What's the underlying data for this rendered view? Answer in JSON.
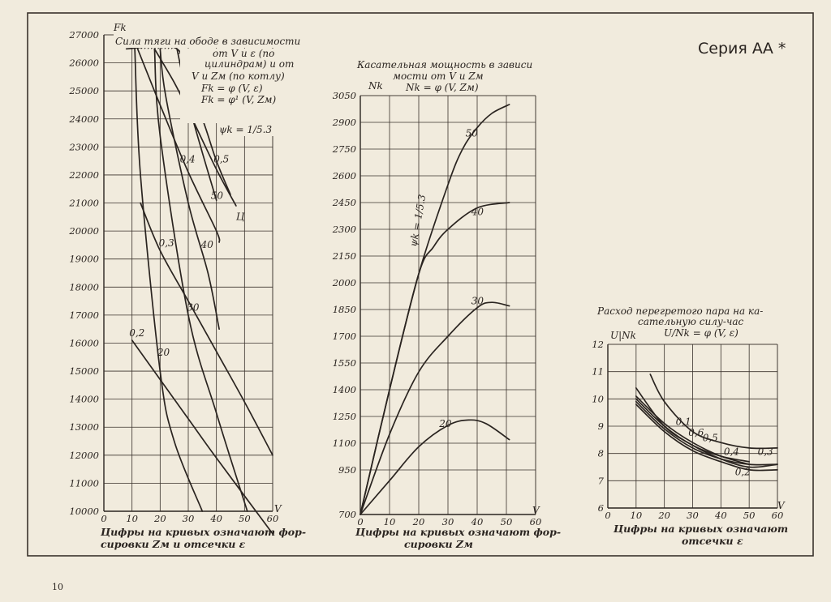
{
  "page": {
    "series_title": "Серия АА *",
    "page_number": "10"
  },
  "chart_data": [
    {
      "type": "line",
      "title": "Сила тяги на ободе в зависимости от V и ε (по цилиндрам) и от V и Zм (по котлу)",
      "title_lines": [
        "Сила тяги на ободе в зависимости",
        "от V и ε (по",
        "цилиндрам) и от",
        "V и Zм (по котлу)"
      ],
      "formulas": [
        "Fk = φ (V, ε)",
        "Fk = φ¹ (V, Zм)"
      ],
      "psi_label": "ψk = 1/5.3",
      "ylabel": "Fk",
      "xlabel": "V",
      "caption_lines": [
        "Цифры на кривых означают фор-",
        "сировки Zм и отсечки ε"
      ],
      "xlim": [
        0,
        60
      ],
      "ylim": [
        10000,
        27000
      ],
      "x_ticks": [
        0,
        10,
        20,
        30,
        40,
        50,
        60
      ],
      "y_ticks": [
        10000,
        11000,
        12000,
        13000,
        14000,
        15000,
        16000,
        17000,
        18000,
        19000,
        20000,
        21000,
        22000,
        23000,
        24000,
        25000,
        26000,
        27000
      ],
      "grid": true,
      "series": [
        {
          "name": "0,2",
          "group": "ε",
          "x": [
            10,
            20,
            30,
            40,
            60
          ],
          "y": [
            16100,
            14700,
            13300,
            11900,
            9200
          ]
        },
        {
          "name": "0,3",
          "group": "ε",
          "x": [
            13,
            20,
            30,
            40,
            50,
            60
          ],
          "y": [
            21000,
            19300,
            17500,
            15700,
            13900,
            12000
          ]
        },
        {
          "name": "0,4",
          "group": "ε",
          "x": [
            12,
            20,
            30,
            40,
            41
          ],
          "y": [
            26500,
            24500,
            22100,
            20000,
            19600
          ]
        },
        {
          "name": "0,5",
          "group": "ε",
          "x": [
            18,
            25,
            30,
            40,
            47
          ],
          "y": [
            26500,
            25300,
            24300,
            22200,
            20900
          ]
        },
        {
          "name": "20",
          "group": "Zм",
          "x": [
            11,
            13,
            20,
            25,
            35
          ],
          "y": [
            26500,
            22000,
            15000,
            12500,
            10000
          ]
        },
        {
          "name": "30",
          "group": "Zм",
          "x": [
            18,
            20,
            30,
            40,
            51
          ],
          "y": [
            26500,
            23400,
            17000,
            13500,
            10000
          ]
        },
        {
          "name": "40",
          "group": "Zм",
          "x": [
            20,
            22,
            30,
            37,
            41
          ],
          "y": [
            26500,
            24800,
            21000,
            18500,
            16500
          ]
        },
        {
          "name": "50",
          "group": "Zм",
          "x": [
            26,
            30,
            35,
            40
          ],
          "y": [
            26500,
            24600,
            22800,
            21100
          ]
        },
        {
          "name": "Ц",
          "group": "limit",
          "x": [
            8,
            26,
            30,
            35,
            40,
            45
          ],
          "y": [
            26500,
            26500,
            25000,
            24000,
            22500,
            21300
          ]
        }
      ],
      "curve_labels": [
        {
          "text": "0,2",
          "x": 9,
          "y": 16250
        },
        {
          "text": "0,3",
          "x": 19.5,
          "y": 19450
        },
        {
          "text": "0,4",
          "x": 27,
          "y": 22450
        },
        {
          "text": "0,5",
          "x": 39,
          "y": 22450
        },
        {
          "text": "20",
          "x": 19,
          "y": 15550
        },
        {
          "text": "30",
          "x": 29.5,
          "y": 17150
        },
        {
          "text": "40",
          "x": 34.5,
          "y": 19400
        },
        {
          "text": "50",
          "x": 38,
          "y": 21150
        },
        {
          "text": "Ц",
          "x": 47,
          "y": 20400
        }
      ]
    },
    {
      "type": "line",
      "title": "Касательная мощность в зависи мости от V и Zм",
      "title_lines": [
        "Касательная мощность в зависи",
        "мости от V и Zм"
      ],
      "formulas": [
        "Nk = φ (V, Zм)"
      ],
      "psi_label": "ψk = 1/5.3",
      "ylabel": "Nk",
      "xlabel": "V",
      "caption_lines": [
        "Цифры на кривых означают фор-",
        "сировки Zм"
      ],
      "xlim": [
        0,
        60
      ],
      "ylim": [
        700,
        3050
      ],
      "x_ticks": [
        0,
        10,
        20,
        30,
        40,
        50,
        60
      ],
      "y_ticks": [
        700,
        950,
        1100,
        1250,
        1400,
        1550,
        1700,
        1850,
        2000,
        2150,
        2300,
        2450,
        2600,
        2750,
        2900,
        3050
      ],
      "grid": true,
      "series": [
        {
          "name": "20",
          "x": [
            0,
            10,
            20,
            30,
            37,
            43,
            51
          ],
          "y": [
            700,
            890,
            1080,
            1200,
            1230,
            1210,
            1120
          ]
        },
        {
          "name": "30",
          "x": [
            0,
            10,
            20,
            30,
            40,
            45,
            51
          ],
          "y": [
            700,
            1150,
            1500,
            1700,
            1860,
            1890,
            1870
          ]
        },
        {
          "name": "40",
          "x": [
            0,
            10,
            20,
            25,
            30,
            40,
            51
          ],
          "y": [
            700,
            1400,
            2050,
            2200,
            2300,
            2420,
            2450
          ]
        },
        {
          "name": "50",
          "x": [
            0,
            10,
            20,
            30,
            35,
            40,
            45,
            51
          ],
          "y": [
            700,
            1400,
            2050,
            2550,
            2750,
            2870,
            2950,
            3000
          ]
        }
      ],
      "curve_labels": [
        {
          "text": "20",
          "x": 27,
          "y": 1190
        },
        {
          "text": "30",
          "x": 38,
          "y": 1880
        },
        {
          "text": "40",
          "x": 38,
          "y": 2380
        },
        {
          "text": "50",
          "x": 36,
          "y": 2820
        }
      ]
    },
    {
      "type": "line",
      "title": "Расход перегретого пара на касательную силу-час",
      "title_lines": [
        "Расход перегретого пара на ка-",
        "сательную силу-час"
      ],
      "formulas": [
        "U/Nk = φ (V, ε)"
      ],
      "ylabel": "U|Nk",
      "xlabel": "V",
      "caption_lines": [
        "Цифры на кривых означают",
        "отсечки ε"
      ],
      "xlim": [
        0,
        60
      ],
      "ylim": [
        6,
        12
      ],
      "x_ticks": [
        0,
        10,
        20,
        30,
        40,
        50,
        60
      ],
      "y_ticks": [
        6,
        7,
        8,
        9,
        10,
        11,
        12
      ],
      "grid": true,
      "series": [
        {
          "name": "0,1",
          "x": [
            15,
            20,
            30,
            40,
            50,
            60
          ],
          "y": [
            10.9,
            9.9,
            8.8,
            8.4,
            8.2,
            8.2
          ]
        },
        {
          "name": "0,2",
          "x": [
            10,
            20,
            30,
            40,
            50,
            60
          ],
          "y": [
            9.8,
            8.8,
            8.1,
            7.7,
            7.4,
            7.4
          ]
        },
        {
          "name": "0,3",
          "x": [
            10,
            20,
            30,
            40,
            50,
            60
          ],
          "y": [
            10.4,
            9.0,
            8.3,
            7.8,
            7.5,
            7.6
          ]
        },
        {
          "name": "0,4",
          "x": [
            10,
            20,
            30,
            40,
            50,
            60
          ],
          "y": [
            9.9,
            8.9,
            8.2,
            7.8,
            7.6,
            7.6
          ]
        },
        {
          "name": "0,5",
          "x": [
            10,
            20,
            30,
            40,
            50
          ],
          "y": [
            10.0,
            9.0,
            8.3,
            7.9,
            7.7
          ]
        },
        {
          "name": "0,6",
          "x": [
            10,
            20,
            30,
            40,
            50
          ],
          "y": [
            10.1,
            9.1,
            8.4,
            7.9,
            7.6
          ]
        }
      ],
      "curve_labels": [
        {
          "text": "0,1",
          "x": 24,
          "y": 9.05
        },
        {
          "text": "0,6",
          "x": 28.5,
          "y": 8.65
        },
        {
          "text": "0,5",
          "x": 33.5,
          "y": 8.45
        },
        {
          "text": "0,4",
          "x": 41,
          "y": 7.95
        },
        {
          "text": "0,3",
          "x": 53,
          "y": 7.95
        },
        {
          "text": "0,2",
          "x": 45,
          "y": 7.2
        }
      ]
    }
  ]
}
